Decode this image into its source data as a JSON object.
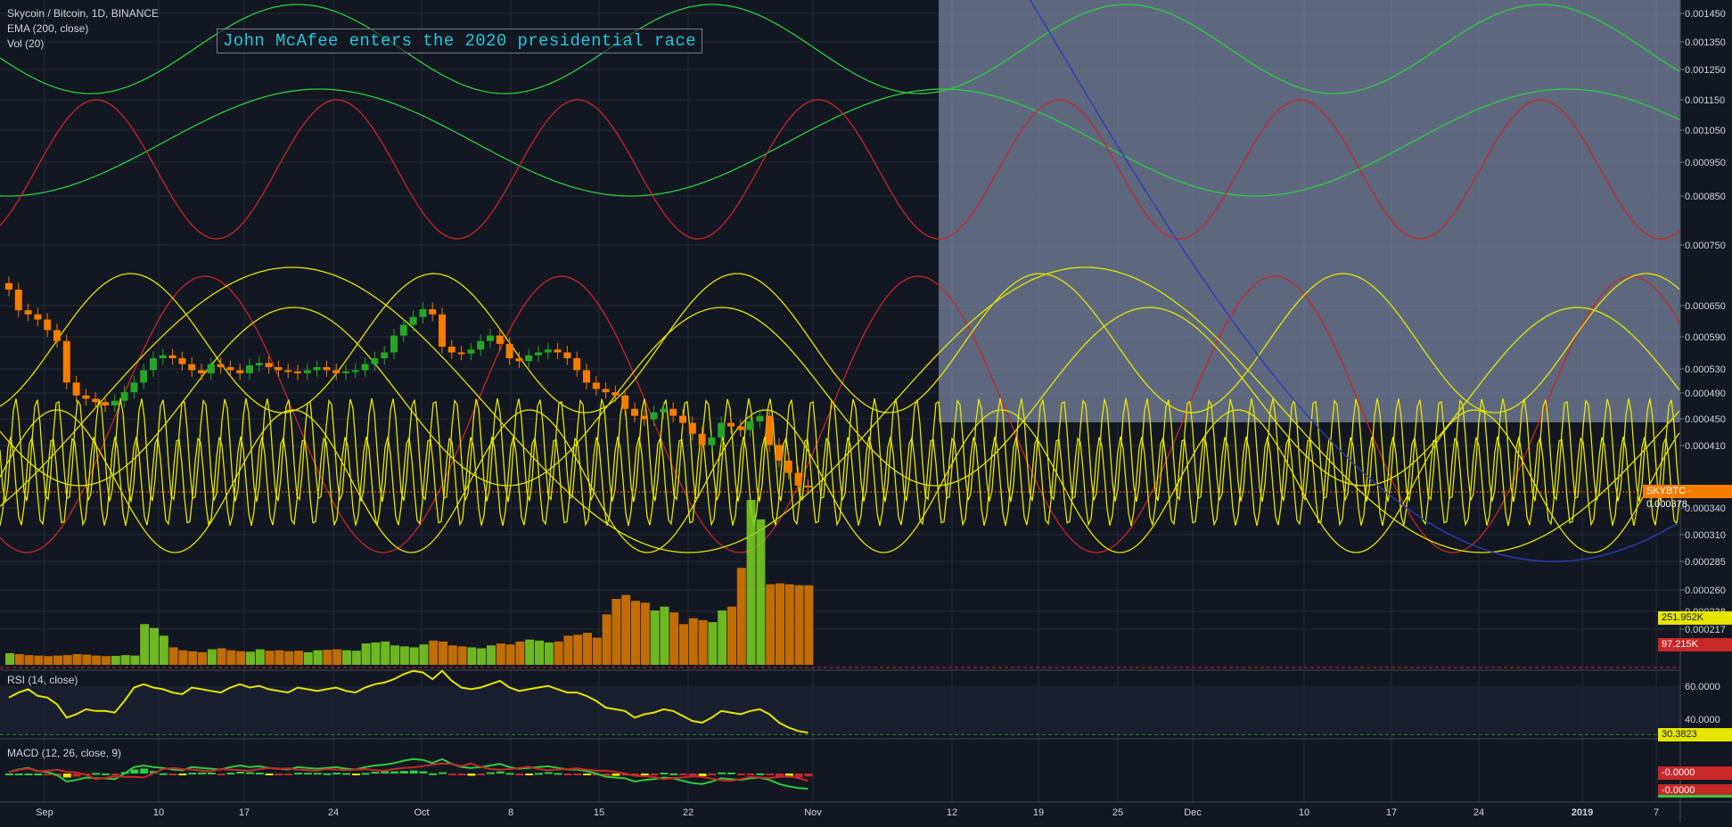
{
  "legend": {
    "symbol": "Skycoin / Bitcoin, 1D, BINANCE",
    "ema": "EMA (200, close)",
    "vol": "Vol (20)"
  },
  "annotation": "John McAfee enters the 2020 presidential race",
  "price_axis": [
    "0.001450",
    "0.001350",
    "0.001250",
    "0.001150",
    "0.001050",
    "0.000950",
    "0.000850",
    "0.000750",
    "0.000650",
    "0.000590",
    "0.000530",
    "0.000490",
    "0.000450",
    "0.000410",
    "0.000340",
    "0.000310",
    "0.000285",
    "0.000260",
    "0.000238",
    "0.000217"
  ],
  "tags": {
    "last_price": "SKYBTC · 0.000378",
    "vol_up": "251.952K",
    "vol_down": "97.215K",
    "rsi_value": "30.3823",
    "macd_a": "-0.0000",
    "macd_b": "-0.0000"
  },
  "rsi": {
    "label": "RSI (14, close)",
    "levels": [
      "60.0000",
      "40.0000"
    ]
  },
  "macd": {
    "label": "MACD (12, 26, close, 9)"
  },
  "time_axis": [
    "Sep",
    "10",
    "17",
    "24",
    "Oct",
    "8",
    "15",
    "22",
    "Nov",
    "12",
    "19",
    "25",
    "Dec",
    "10",
    "17",
    "24",
    "2019",
    "7"
  ],
  "colors": {
    "background": "#131722",
    "up": "#26a626",
    "down": "#f57c00",
    "sine_yellow": "#e6e600",
    "sine_red": "#c62828",
    "sine_green": "#2ecc40",
    "highlight": "#8a9bb8",
    "annotation_text": "#26c6da"
  },
  "chart_data": {
    "type": "candlestick",
    "series": [
      {
        "name": "price",
        "values": [
          0.00069,
          0.000648,
          0.00064,
          0.00063,
          0.00061,
          0.00059,
          0.00052,
          0.0005,
          0.000495,
          0.00049,
          0.000485,
          0.000492,
          0.000505,
          0.00052,
          0.00054,
          0.00056,
          0.000565,
          0.00056,
          0.00055,
          0.00054,
          0.000535,
          0.00055,
          0.000545,
          0.00054,
          0.000535,
          0.000548,
          0.000552,
          0.000545,
          0.00054,
          0.000538,
          0.000535,
          0.00054,
          0.000545,
          0.00054,
          0.000535,
          0.000538,
          0.00054,
          0.00055,
          0.00056,
          0.00057,
          0.0006,
          0.00062,
          0.000635,
          0.00065,
          0.00064,
          0.00058,
          0.00057,
          0.000568,
          0.000575,
          0.00059,
          0.0006,
          0.000585,
          0.00056,
          0.000555,
          0.000565,
          0.00057,
          0.000575,
          0.00057,
          0.00056,
          0.00054,
          0.00052,
          0.00051,
          0.000505,
          0.0005,
          0.00048,
          0.00047,
          0.000465,
          0.000475,
          0.00048,
          0.00047,
          0.00046,
          0.000445,
          0.00043,
          0.00044,
          0.00046,
          0.000455,
          0.00045,
          0.000462,
          0.00047,
          0.00043,
          0.00041,
          0.000395,
          0.00038,
          0.000378
        ]
      },
      {
        "name": "volume",
        "values": [
          120,
          110,
          100,
          95,
          90,
          95,
          100,
          110,
          105,
          95,
          90,
          92,
          100,
          95,
          420,
          380,
          300,
          180,
          150,
          140,
          130,
          160,
          170,
          150,
          140,
          135,
          160,
          145,
          150,
          140,
          145,
          130,
          150,
          155,
          160,
          150,
          145,
          220,
          230,
          240,
          200,
          190,
          180,
          210,
          250,
          240,
          200,
          190,
          180,
          170,
          200,
          220,
          210,
          240,
          260,
          250,
          230,
          240,
          300,
          310,
          330,
          280,
          520,
          680,
          720,
          660,
          640,
          560,
          600,
          540,
          420,
          480,
          460,
          440,
          560,
          600,
          1000,
          1700,
          1500,
          830,
          840,
          830,
          820,
          820
        ]
      }
    ],
    "rsi": [
      52,
      55,
      57,
      53,
      52,
      48,
      40,
      42,
      45,
      44,
      44,
      43,
      50,
      58,
      60,
      58,
      57,
      55,
      54,
      58,
      57,
      56,
      55,
      58,
      60,
      58,
      59,
      57,
      56,
      55,
      58,
      57,
      56,
      57,
      58,
      56,
      55,
      58,
      60,
      61,
      63,
      66,
      68,
      67,
      63,
      68,
      62,
      58,
      57,
      58,
      60,
      62,
      58,
      56,
      57,
      58,
      59,
      57,
      55,
      55,
      53,
      50,
      46,
      45,
      44,
      40,
      42,
      43,
      45,
      44,
      41,
      38,
      37,
      40,
      44,
      43,
      42,
      44,
      45,
      42,
      37,
      34,
      32,
      31
    ],
    "xlabel": "",
    "ylabel": ""
  }
}
